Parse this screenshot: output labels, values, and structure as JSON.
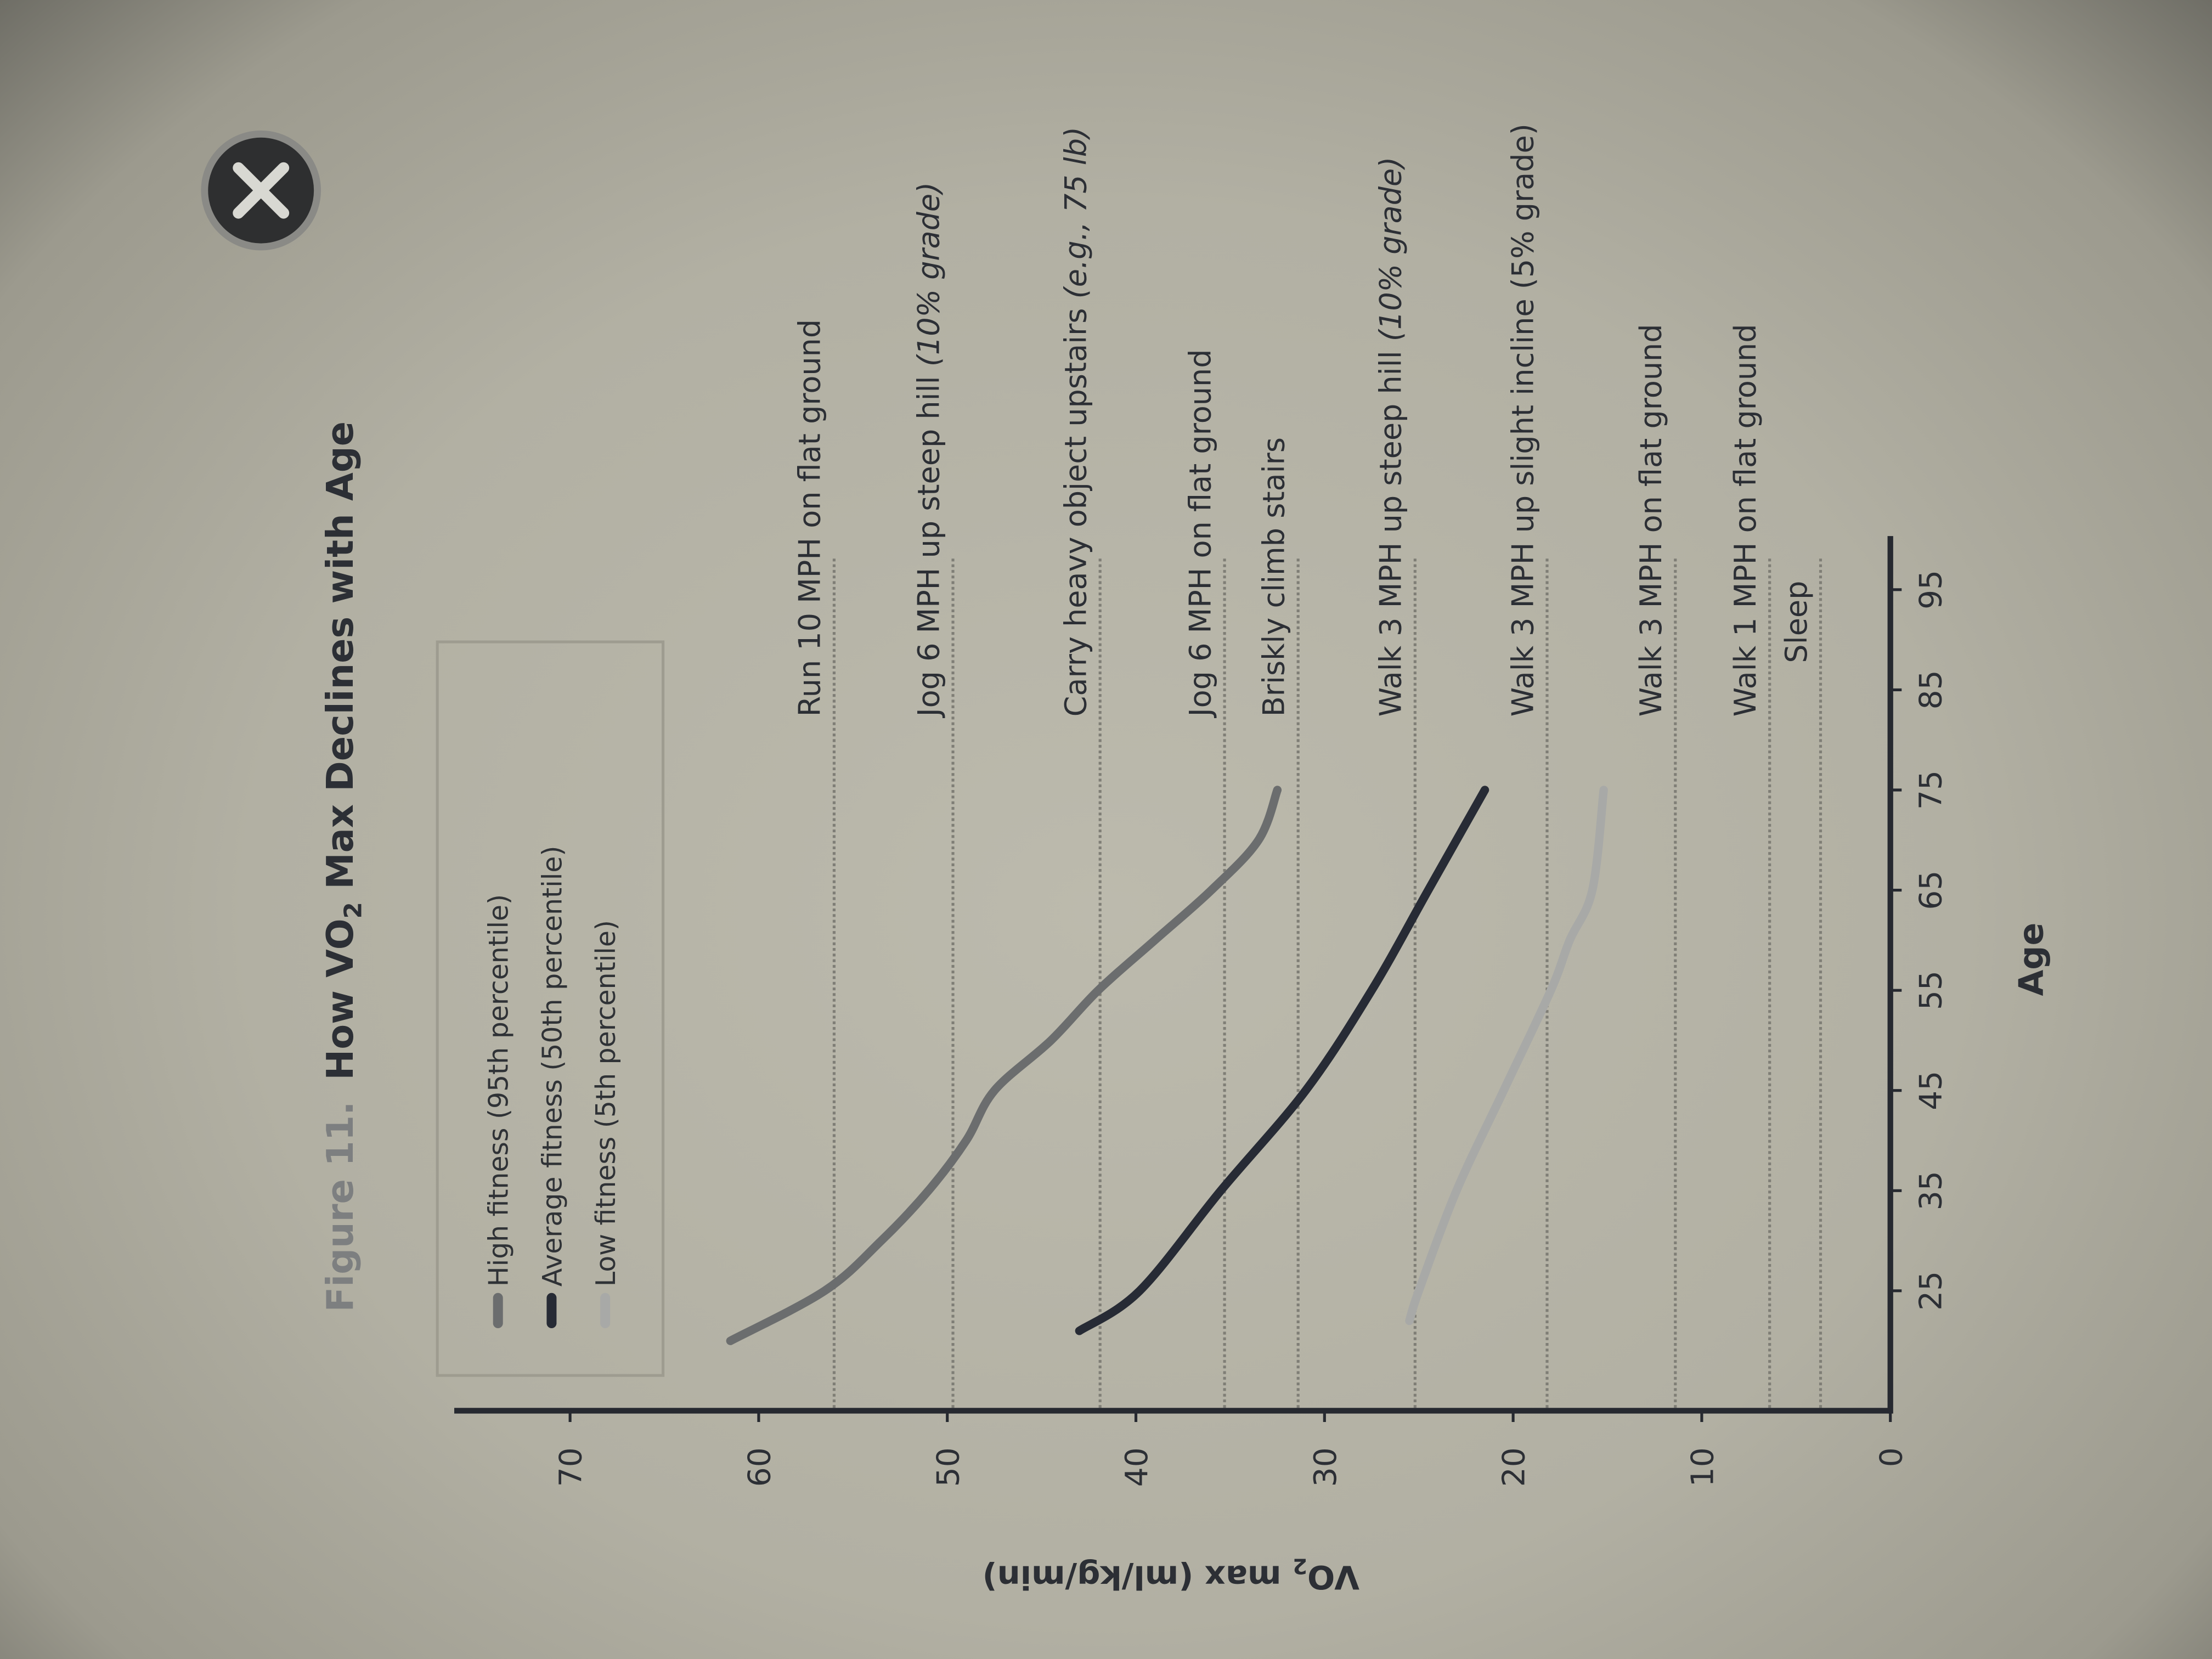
{
  "figure": {
    "label": "Figure 11.",
    "title_prefix": "How VO",
    "title_sub": "2",
    "title_suffix": " Max Declines with Age"
  },
  "close_button": {
    "icon": "close-x-icon"
  },
  "chart_data": {
    "type": "line",
    "title": "How VO2 Max Declines with Age",
    "xlabel": "Age",
    "ylabel_prefix": "VO",
    "ylabel_sub": "2",
    "ylabel_suffix": " max (ml/kg/min)",
    "xlim": [
      15,
      100
    ],
    "ylim": [
      0,
      75
    ],
    "x_ticks": [
      "25",
      "35",
      "45",
      "55",
      "65",
      "75",
      "85",
      "95"
    ],
    "y_ticks": [
      "0",
      "10",
      "20",
      "30",
      "40",
      "50",
      "60",
      "70"
    ],
    "legend_placement": "top-left",
    "grid": false,
    "series": [
      {
        "name": "High fitness (95th percentile)",
        "color": "#6b6d6e",
        "x": [
          20,
          25,
          30,
          35,
          40,
          45,
          50,
          55,
          60,
          65,
          70,
          75
        ],
        "y": [
          61.5,
          56.5,
          53.5,
          51,
          49,
          47.5,
          44.5,
          42,
          39,
          36,
          33.5,
          32.5
        ]
      },
      {
        "name": "Average fitness (50th percentile)",
        "color": "#272b35",
        "x": [
          21,
          25,
          35,
          45,
          55,
          65,
          75
        ],
        "y": [
          43,
          39.8,
          35.5,
          31,
          27.5,
          24.5,
          21.5
        ]
      },
      {
        "name": "Low fitness (5th percentile)",
        "color": "#a8a9a7",
        "x": [
          22,
          25,
          35,
          45,
          55,
          60,
          65,
          75
        ],
        "y": [
          25.5,
          25,
          23,
          20.5,
          18,
          17,
          15.8,
          15.2
        ]
      }
    ],
    "reference_lines": [
      {
        "label": "Run 10 MPH on flat ground",
        "note": "",
        "y": 56
      },
      {
        "label": "Jog 6 MPH up steep hill ",
        "note": "(10% grade)",
        "y": 49.7
      },
      {
        "label": "Carry heavy object upstairs ",
        "note": "(e.g., 75 lb)",
        "y": 41.9
      },
      {
        "label": "Jog 6 MPH on flat ground",
        "note": "",
        "y": 35.3
      },
      {
        "label": "Briskly climb stairs",
        "note": "",
        "y": 31.4
      },
      {
        "label": "Walk 3 MPH up steep hill ",
        "note": "(10% grade)",
        "y": 25.2
      },
      {
        "label": "Walk 3 MPH up slight incline (5% grade)",
        "note": "",
        "y": 18.2
      },
      {
        "label": "Walk 3 MPH on flat ground",
        "note": "",
        "y": 11.4
      },
      {
        "label": "Walk 1 MPH on flat ground",
        "note": "",
        "y": 6.4
      },
      {
        "label": "Sleep",
        "note": "",
        "y": 3.7
      }
    ]
  }
}
